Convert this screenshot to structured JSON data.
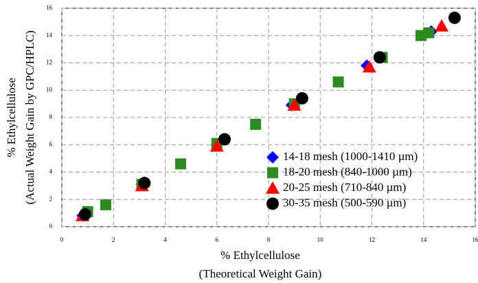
{
  "chart_data": {
    "type": "scatter",
    "x_label": [
      "% Ethylcellulose",
      "(Theoretical Weight Gain)"
    ],
    "y_label": [
      "% Ethylcellulose",
      "(Actual Weight Gain by GPC/HPLC)"
    ],
    "xlim": [
      0,
      16
    ],
    "ylim": [
      0,
      16
    ],
    "xticks": [
      0,
      2,
      4,
      6,
      8,
      10,
      12,
      14,
      16
    ],
    "yticks": [
      0,
      2,
      4,
      6,
      8,
      10,
      12,
      14,
      16
    ],
    "grid": true,
    "legend": "lower right",
    "series": [
      {
        "name": "14-18 mesh (1000-1410 µm)",
        "color": "#0000ff",
        "marker": "diamond",
        "x": [
          0.8,
          3.1,
          6.0,
          8.9,
          11.8,
          14.3
        ],
        "values": [
          0.8,
          3.1,
          6.0,
          8.9,
          11.8,
          14.3
        ]
      },
      {
        "name": "18-20 mesh (840-1000 µm)",
        "color": "#2e8b22",
        "marker": "square",
        "x": [
          1.0,
          1.7,
          3.1,
          4.6,
          6.0,
          7.5,
          9.0,
          10.7,
          12.4,
          13.9,
          14.2
        ],
        "values": [
          1.1,
          1.6,
          3.1,
          4.6,
          6.1,
          7.5,
          9.0,
          10.6,
          12.4,
          14.0,
          14.2
        ]
      },
      {
        "name": "20-25 mesh (710-840 µm)",
        "color": "#ff0000",
        "marker": "triangle",
        "x": [
          0.8,
          3.1,
          6.0,
          9.0,
          11.9,
          14.7
        ],
        "values": [
          0.8,
          3.0,
          5.9,
          8.9,
          11.7,
          14.7
        ]
      },
      {
        "name": "30-35 mesh (500-590 µm)",
        "color": "#000000",
        "marker": "circle",
        "x": [
          0.9,
          3.2,
          6.3,
          9.3,
          12.3,
          15.2
        ],
        "values": [
          0.9,
          3.2,
          6.4,
          9.4,
          12.4,
          15.3
        ]
      }
    ]
  }
}
